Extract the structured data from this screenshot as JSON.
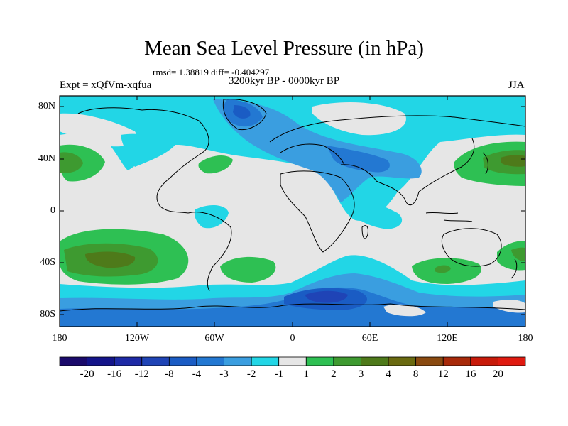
{
  "title": "Mean Sea Level Pressure (in hPa)",
  "stats_line": "rmsd= 1.38819  diff= -0.404297",
  "subtitle": "3200kyr BP - 0000kyr BP",
  "left_label": "Expt = xQfVm-xqfua",
  "right_label": "JJA",
  "lat_labels": [
    "80N",
    "40N",
    "0",
    "40S",
    "80S"
  ],
  "lon_labels": [
    "180",
    "120W",
    "60W",
    "0",
    "60E",
    "120E",
    "180"
  ],
  "colorbar": {
    "labels": [
      "-20",
      "-16",
      "-12",
      "-8",
      "-4",
      "-3",
      "-2",
      "-1",
      "1",
      "2",
      "3",
      "4",
      "8",
      "12",
      "16",
      "20"
    ],
    "colors": [
      "#1a0a6b",
      "#14148a",
      "#1e2aa6",
      "#1f44b6",
      "#1a5cc4",
      "#2378d2",
      "#3a9ee0",
      "#22d6e6",
      "#e6e6e6",
      "#2ec053",
      "#3e9a30",
      "#4e7a1a",
      "#6a6a10",
      "#8a4a10",
      "#a82a0a",
      "#c81a0a",
      "#e01a10"
    ]
  },
  "colors": {
    "neutral": "#e6e6e6",
    "neg1": "#22d6e6",
    "neg2": "#3a9ee0",
    "neg3": "#2378d2",
    "neg4": "#1a5cc4",
    "neg8": "#1f44b6",
    "pos1": "#2ec053",
    "pos2": "#3e9a30",
    "pos3": "#4e7a1a"
  }
}
